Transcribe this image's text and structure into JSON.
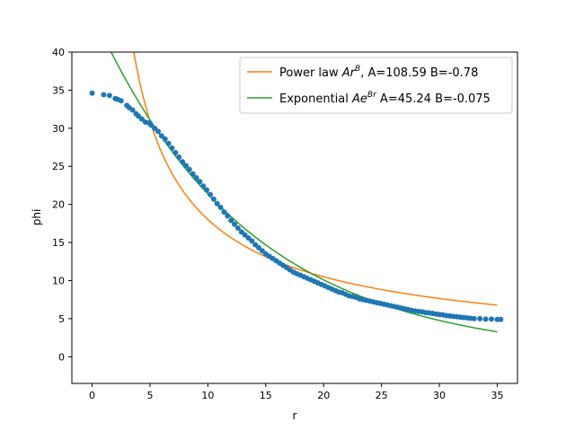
{
  "chart_data": {
    "type": "scatter",
    "title": "",
    "xlabel": "r",
    "ylabel": "phi",
    "xlim": [
      -1.75,
      36.75
    ],
    "ylim": [
      -3.5,
      40
    ],
    "xticks": [
      0,
      5,
      10,
      15,
      20,
      25,
      30,
      35
    ],
    "yticks": [
      0,
      5,
      10,
      15,
      20,
      25,
      30,
      35,
      40
    ],
    "grid": false,
    "legend_position": "upper right",
    "colors": {
      "data": "#1f77b4",
      "power": "#ff7f0e",
      "exponential": "#2ca02c"
    },
    "scatter": {
      "x": [
        0,
        1,
        1.5,
        2,
        2.2,
        2.5,
        3,
        3.2,
        3.5,
        3.8,
        4,
        4.3,
        4.6,
        4.9,
        5.1,
        5.4,
        5.7,
        6,
        6.3,
        6.6,
        6.9,
        7.2,
        7.5,
        7.8,
        8.1,
        8.4,
        8.7,
        9,
        9.3,
        9.6,
        9.9,
        10.2,
        10.5,
        10.8,
        11.1,
        11.4,
        11.7,
        12,
        12.3,
        12.6,
        12.9,
        13.2,
        13.5,
        13.8,
        14.1,
        14.4,
        14.7,
        15,
        15.3,
        15.6,
        15.9,
        16.2,
        16.5,
        16.8,
        17.1,
        17.4,
        17.7,
        18,
        18.3,
        18.6,
        18.9,
        19.2,
        19.5,
        19.8,
        20.1,
        20.4,
        20.7,
        21,
        21.3,
        21.6,
        21.9,
        22.2,
        22.5,
        22.8,
        23.1,
        23.4,
        23.7,
        24,
        24.3,
        24.6,
        24.9,
        25.2,
        25.5,
        25.8,
        26.1,
        26.4,
        26.7,
        27,
        27.3,
        27.6,
        27.9,
        28.2,
        28.5,
        28.8,
        29.1,
        29.4,
        29.7,
        30,
        30.3,
        30.6,
        30.9,
        31.2,
        31.5,
        31.8,
        32.1,
        32.4,
        32.7,
        33,
        33.5,
        34,
        34.5,
        35,
        35.3
      ],
      "y": [
        34.6,
        34.4,
        34.3,
        33.9,
        33.8,
        33.6,
        33.0,
        32.7,
        32.4,
        31.9,
        31.6,
        31.2,
        30.8,
        30.7,
        30.4,
        30.0,
        29.6,
        29.0,
        28.6,
        28.0,
        27.4,
        26.8,
        26.2,
        25.6,
        25.1,
        24.6,
        24.0,
        23.5,
        23.0,
        22.4,
        21.9,
        21.3,
        20.7,
        20.1,
        19.6,
        19.0,
        18.5,
        17.9,
        17.4,
        16.9,
        16.4,
        16.0,
        15.6,
        15.2,
        14.7,
        14.3,
        13.9,
        13.5,
        13.2,
        12.9,
        12.6,
        12.3,
        12.0,
        11.7,
        11.4,
        11.1,
        10.9,
        10.7,
        10.5,
        10.3,
        10.1,
        9.9,
        9.7,
        9.5,
        9.3,
        9.1,
        8.9,
        8.7,
        8.5,
        8.4,
        8.2,
        8.0,
        7.9,
        7.8,
        7.6,
        7.5,
        7.4,
        7.3,
        7.2,
        7.1,
        7.0,
        6.9,
        6.8,
        6.7,
        6.6,
        6.5,
        6.4,
        6.3,
        6.2,
        6.1,
        6.0,
        5.95,
        5.9,
        5.8,
        5.75,
        5.7,
        5.6,
        5.55,
        5.5,
        5.4,
        5.35,
        5.3,
        5.25,
        5.2,
        5.15,
        5.1,
        5.05,
        5.0,
        5.0,
        4.95,
        4.95,
        4.9,
        4.9
      ]
    },
    "series": [
      {
        "name": "Power law $Ar^B$, A=108.59 B=-0.78",
        "kind": "power",
        "A": 108.59,
        "B": -0.78,
        "x_range": [
          3.5,
          35
        ]
      },
      {
        "name": "Exponential $Ae^{Br}$ A=45.24 B=-0.075",
        "kind": "exponential",
        "A": 45.24,
        "B": -0.075,
        "x_range": [
          0,
          35
        ]
      }
    ],
    "legend": {
      "power": {
        "prefix": "Power law ",
        "base": "Ar",
        "exp": "B",
        "suffix": ", A=108.59 B=-0.78"
      },
      "exponential": {
        "prefix": "Exponential ",
        "base": "Ae",
        "exp": "Br",
        "suffix": " A=45.24 B=-0.075"
      }
    }
  }
}
